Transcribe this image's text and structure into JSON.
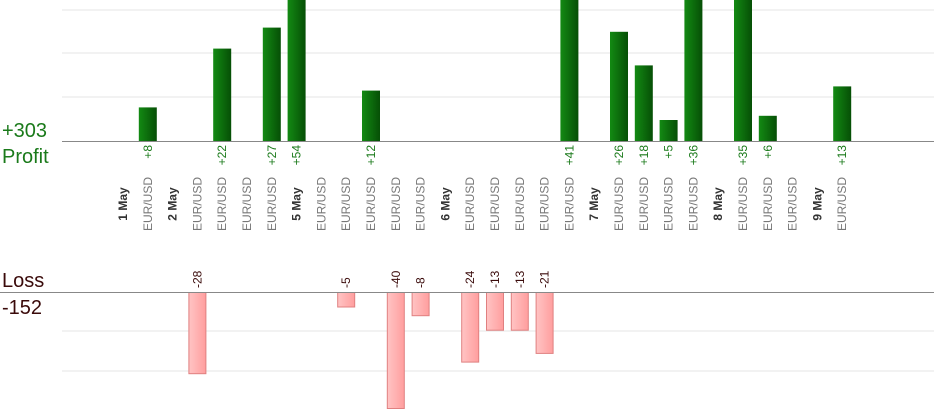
{
  "profit_label": "Profit",
  "profit_total": "+303",
  "loss_label": "Loss",
  "loss_total": "-152",
  "colors": {
    "profit_bar": "#0a6e0a",
    "profit_text": "#1a7a1a",
    "loss_bar": "#ffb0b0",
    "loss_bar_edge": "#e08080",
    "loss_text": "#3a0a0a",
    "instrument_text": "#777777",
    "day_text": "#333333",
    "axis": "#888888",
    "grid": "#e6e6e6"
  },
  "chart_data": {
    "type": "bar",
    "categories": [
      "1 May",
      "EUR/USD",
      "2 May",
      "EUR/USD",
      "EUR/USD",
      "EUR/USD",
      "EUR/USD",
      "5 May",
      "EUR/USD",
      "EUR/USD",
      "EUR/USD",
      "EUR/USD",
      "EUR/USD",
      "6 May",
      "EUR/USD",
      "EUR/USD",
      "EUR/USD",
      "EUR/USD",
      "EUR/USD",
      "7 May",
      "EUR/USD",
      "EUR/USD",
      "EUR/USD",
      "EUR/USD",
      "8 May",
      "EUR/USD",
      "EUR/USD",
      "EUR/USD",
      "9 May",
      "EUR/USD"
    ],
    "series": [
      {
        "values": [
          null,
          8,
          null,
          null,
          22,
          null,
          27,
          54,
          null,
          null,
          12,
          null,
          null,
          null,
          null,
          null,
          null,
          null,
          41,
          null,
          26,
          18,
          5,
          36,
          null,
          35,
          6,
          null,
          null,
          13
        ],
        "labels": [
          "",
          "+8",
          "",
          "",
          "+22",
          "",
          "+27",
          "+54",
          "",
          "",
          "+12",
          "",
          "",
          "",
          "",
          "",
          "",
          "",
          "+41",
          "",
          "+26",
          "+18",
          "+5",
          "+36",
          "",
          "+35",
          "+6",
          "",
          "",
          "+13"
        ]
      },
      {
        "values": [
          null,
          null,
          null,
          -28,
          null,
          null,
          null,
          null,
          null,
          -5,
          null,
          -40,
          -8,
          null,
          -24,
          -13,
          -13,
          -21,
          null,
          null,
          null,
          null,
          null,
          null,
          null,
          null,
          null,
          null,
          null,
          null
        ],
        "labels": [
          "",
          "",
          "",
          "-28",
          "",
          "",
          "",
          "",
          "",
          "-5",
          "",
          "-40",
          "-8",
          "",
          "-24",
          "-13",
          "-13",
          "-21",
          "",
          "",
          "",
          "",
          "",
          "",
          "",
          "",
          "",
          "",
          "",
          ""
        ]
      }
    ],
    "grid": true
  }
}
